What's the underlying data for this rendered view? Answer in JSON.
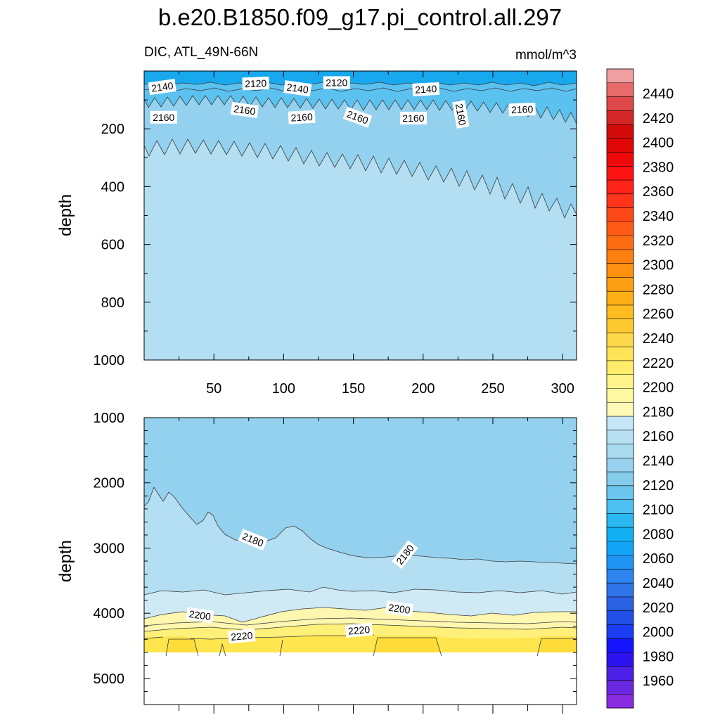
{
  "title": "b.e20.B1850.f09_g17.pi_control.all.297",
  "variable_label": "DIC, ATL_49N-66N",
  "units_label": "mmol/m^3",
  "colors": {
    "band_2120": "#18a8ee",
    "band_2140": "#5bc2f0",
    "band_2160": "#93d1ef",
    "band_2180": "#b4dff2",
    "band_2200": "#cfe9f5",
    "band_2220": "#fff7b0",
    "band_2240": "#fff07a",
    "band_2260": "#ffe64f",
    "band_2280": "#ffdc3a",
    "contour_line": "#3a3a3a"
  },
  "chart_data": [
    {
      "type": "contour",
      "panel": "upper",
      "xlabel": "",
      "ylabel": "depth",
      "xlim": [
        0,
        310
      ],
      "ylim": [
        1000,
        0
      ],
      "y_reversed": true,
      "xticks": [
        50,
        100,
        150,
        200,
        250,
        300
      ],
      "yticks": [
        200,
        400,
        600,
        800,
        1000
      ],
      "contour_labels": [
        {
          "text": "2140",
          "x": 13,
          "y": 55
        },
        {
          "text": "2120",
          "x": 80,
          "y": 43
        },
        {
          "text": "2140",
          "x": 110,
          "y": 60
        },
        {
          "text": "2120",
          "x": 138,
          "y": 40
        },
        {
          "text": "2140",
          "x": 202,
          "y": 63
        },
        {
          "text": "2160",
          "x": 14,
          "y": 160
        },
        {
          "text": "2160",
          "x": 72,
          "y": 135
        },
        {
          "text": "2160",
          "x": 113,
          "y": 160
        },
        {
          "text": "2160",
          "x": 153,
          "y": 160
        },
        {
          "text": "2160",
          "x": 193,
          "y": 163
        },
        {
          "text": "2160",
          "x": 227,
          "y": 150
        },
        {
          "text": "2160",
          "x": 271,
          "y": 133
        }
      ]
    },
    {
      "type": "contour",
      "panel": "lower",
      "xlabel": "",
      "ylabel": "depth",
      "xlim": [
        0,
        310
      ],
      "ylim": [
        5400,
        1000
      ],
      "y_reversed": true,
      "yticks": [
        1000,
        2000,
        3000,
        4000,
        5000
      ],
      "data_bottom": 4600,
      "contour_labels": [
        {
          "text": "2180",
          "x": 78,
          "y": 2870
        },
        {
          "text": "2180",
          "x": 187,
          "y": 3100
        },
        {
          "text": "2200",
          "x": 40,
          "y": 4030
        },
        {
          "text": "2200",
          "x": 183,
          "y": 3930
        },
        {
          "text": "2220",
          "x": 70,
          "y": 4350
        },
        {
          "text": "2220",
          "x": 154,
          "y": 4260
        }
      ]
    },
    {
      "type": "colorbar",
      "levels": [
        1960,
        1980,
        2000,
        2020,
        2040,
        2060,
        2080,
        2100,
        2120,
        2140,
        2160,
        2180,
        2200,
        2220,
        2240,
        2260,
        2280,
        2300,
        2320,
        2340,
        2360,
        2380,
        2400,
        2420,
        2440
      ],
      "colors": [
        "#8a2be2",
        "#6a28e0",
        "#4c20e6",
        "#2d12f0",
        "#1414ff",
        "#1a3cf4",
        "#2150e8",
        "#2a62e4",
        "#2f74ea",
        "#2b84f0",
        "#1e94f4",
        "#12a4f6",
        "#12b0f2",
        "#2ab8f0",
        "#4cc0f2",
        "#6ac6ee",
        "#85cdec",
        "#98d2ee",
        "#a9dbf0",
        "#b8e1f4",
        "#c6e7f7",
        "#fff9b8",
        "#fff8a0",
        "#fff38a",
        "#ffec6a",
        "#ffe356",
        "#ffd84a",
        "#ffca30",
        "#ffbc20",
        "#ffae14",
        "#ffa012",
        "#ff9010",
        "#ff800e",
        "#ff6c12",
        "#ff5a16",
        "#ff4818",
        "#ff341a",
        "#ff2216",
        "#ff1212",
        "#f00a0a",
        "#e00606",
        "#d20a0a",
        "#d42828",
        "#de4848",
        "#e86a6a",
        "#f0a0a0"
      ]
    }
  ]
}
